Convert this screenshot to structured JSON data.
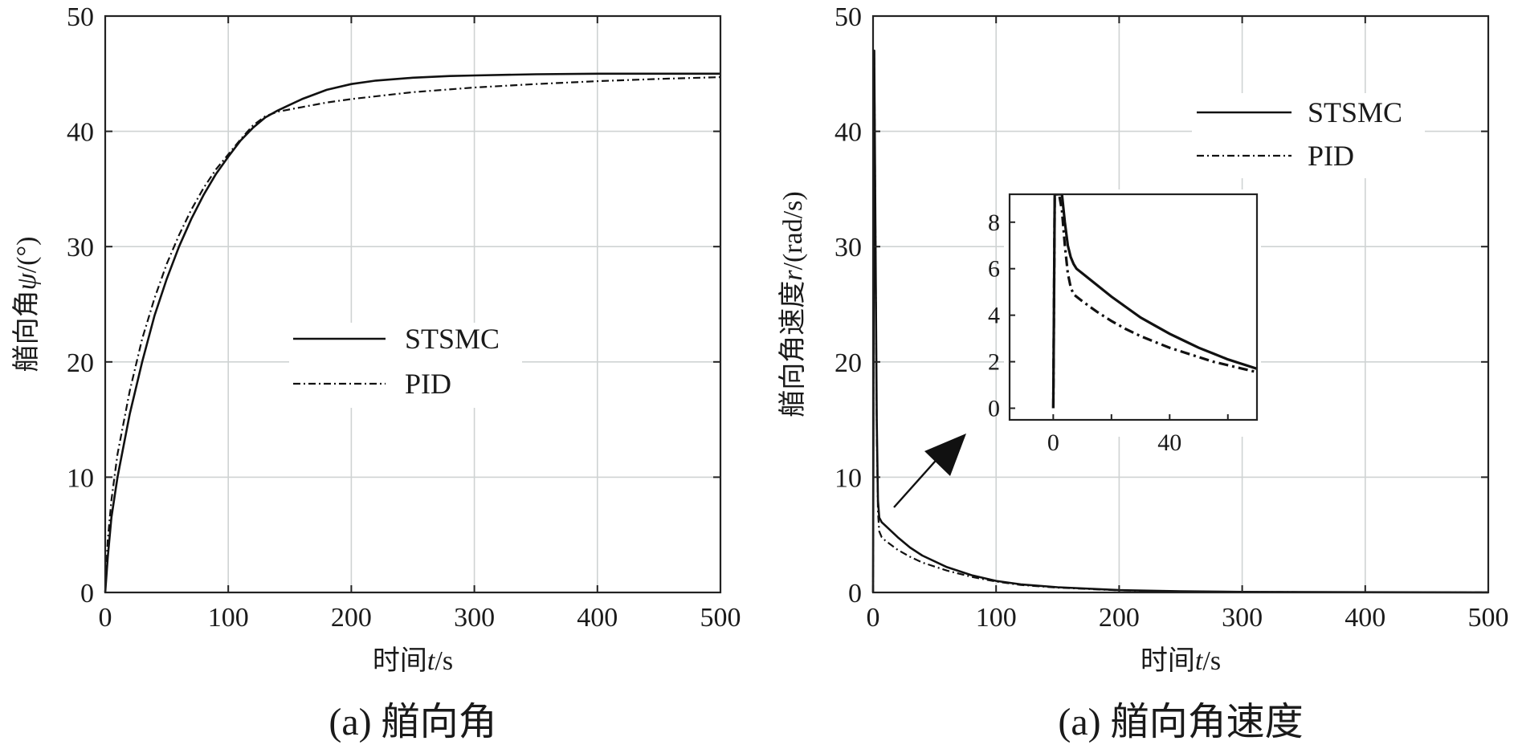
{
  "chart_data": [
    {
      "type": "line",
      "id": "heading",
      "xlabel_prefix": "时间",
      "xlabel_var": "t",
      "xlabel_unit": "/s",
      "ylabel_prefix": "艏向角",
      "ylabel_var": "ψ",
      "ylabel_unit": "/(°)",
      "caption": "(a) 艏向角",
      "xlim": [
        0,
        500
      ],
      "ylim": [
        0,
        50
      ],
      "xticks": [
        0,
        100,
        200,
        300,
        400,
        500
      ],
      "yticks": [
        0,
        10,
        20,
        30,
        40,
        50
      ],
      "grid": true,
      "legend_position": "center",
      "series": [
        {
          "name": "STSMC",
          "style": "solid",
          "x": [
            0,
            2,
            5,
            10,
            20,
            30,
            40,
            50,
            60,
            70,
            80,
            90,
            100,
            110,
            120,
            130,
            140,
            150,
            160,
            180,
            200,
            220,
            250,
            280,
            300,
            350,
            400,
            450,
            500
          ],
          "y": [
            0,
            3,
            6.5,
            10,
            15.5,
            20,
            24,
            27.2,
            30,
            32.4,
            34.5,
            36.3,
            37.8,
            39.2,
            40.3,
            41.2,
            41.8,
            42.3,
            42.8,
            43.6,
            44.1,
            44.4,
            44.65,
            44.8,
            44.85,
            44.95,
            45,
            45,
            45
          ]
        },
        {
          "name": "PID",
          "style": "dashdot",
          "x": [
            0,
            2,
            5,
            10,
            20,
            30,
            40,
            50,
            60,
            70,
            80,
            90,
            100,
            110,
            120,
            130,
            140,
            160,
            180,
            200,
            250,
            300,
            350,
            400,
            450,
            500
          ],
          "y": [
            0,
            4.5,
            8,
            12,
            17.5,
            22,
            25.5,
            28.5,
            31,
            33.2,
            35.1,
            36.7,
            38,
            39.3,
            40.5,
            41.3,
            41.7,
            42.1,
            42.5,
            42.8,
            43.4,
            43.8,
            44.1,
            44.35,
            44.55,
            44.7
          ]
        }
      ]
    },
    {
      "type": "line",
      "id": "yaw-rate",
      "xlabel_prefix": "时间",
      "xlabel_var": "t",
      "xlabel_unit": "/s",
      "ylabel_prefix": "艏向角速度",
      "ylabel_var": "r",
      "ylabel_unit": "/(rad/s)",
      "caption": "(a) 艏向角速度",
      "xlim": [
        0,
        500
      ],
      "ylim": [
        0,
        50
      ],
      "xticks": [
        0,
        100,
        200,
        300,
        400,
        500
      ],
      "yticks": [
        0,
        10,
        20,
        30,
        40,
        50
      ],
      "grid": true,
      "legend_position": "top-right",
      "series": [
        {
          "name": "STSMC",
          "style": "solid",
          "x": [
            0,
            1,
            2,
            3,
            4,
            5,
            7,
            10,
            20,
            30,
            40,
            60,
            80,
            100,
            120,
            150,
            200,
            250,
            300,
            400,
            500
          ],
          "y": [
            0,
            47,
            30,
            15,
            8,
            6.5,
            6.1,
            5.8,
            4.8,
            3.9,
            3.2,
            2.2,
            1.5,
            1.0,
            0.7,
            0.45,
            0.2,
            0.1,
            0.05,
            0.02,
            0.01
          ]
        },
        {
          "name": "PID",
          "style": "dashdot",
          "x": [
            0,
            1,
            2,
            3,
            4,
            5,
            7,
            10,
            20,
            30,
            40,
            60,
            80,
            100,
            120,
            150,
            200,
            250,
            300,
            400,
            500
          ],
          "y": [
            0,
            47,
            30,
            14,
            7,
            5.3,
            4.8,
            4.5,
            3.7,
            3.1,
            2.6,
            1.9,
            1.35,
            0.95,
            0.65,
            0.42,
            0.18,
            0.08,
            0.04,
            0.02,
            0.01
          ]
        }
      ],
      "inset": {
        "xlim": [
          -15,
          70
        ],
        "ylim": [
          -0.5,
          9.2
        ],
        "xticks": [
          0,
          40
        ],
        "yticks": [
          0,
          2,
          4,
          6,
          8
        ],
        "series": [
          {
            "name": "STSMC",
            "style": "solid",
            "x": [
              0,
              0.5,
              1,
              2,
              3,
              4,
              5,
              6,
              7,
              8,
              10,
              15,
              20,
              25,
              30,
              35,
              40,
              45,
              50,
              55,
              60,
              65,
              70
            ],
            "y": [
              0,
              9.2,
              9.2,
              9.2,
              9.2,
              8.0,
              7.0,
              6.5,
              6.2,
              6.0,
              5.8,
              5.3,
              4.8,
              4.35,
              3.9,
              3.55,
              3.2,
              2.9,
              2.6,
              2.35,
              2.1,
              1.9,
              1.7
            ]
          },
          {
            "name": "PID",
            "style": "dashdot",
            "x": [
              0,
              0.5,
              1,
              2,
              3,
              4,
              5,
              6,
              7,
              8,
              10,
              15,
              20,
              25,
              30,
              35,
              40,
              45,
              50,
              55,
              60,
              65,
              70
            ],
            "y": [
              0,
              9.2,
              9.2,
              9.2,
              8.5,
              7.0,
              5.8,
              5.2,
              4.9,
              4.8,
              4.6,
              4.15,
              3.75,
              3.4,
              3.1,
              2.85,
              2.6,
              2.4,
              2.2,
              2.0,
              1.85,
              1.7,
              1.55
            ]
          }
        ]
      }
    }
  ]
}
